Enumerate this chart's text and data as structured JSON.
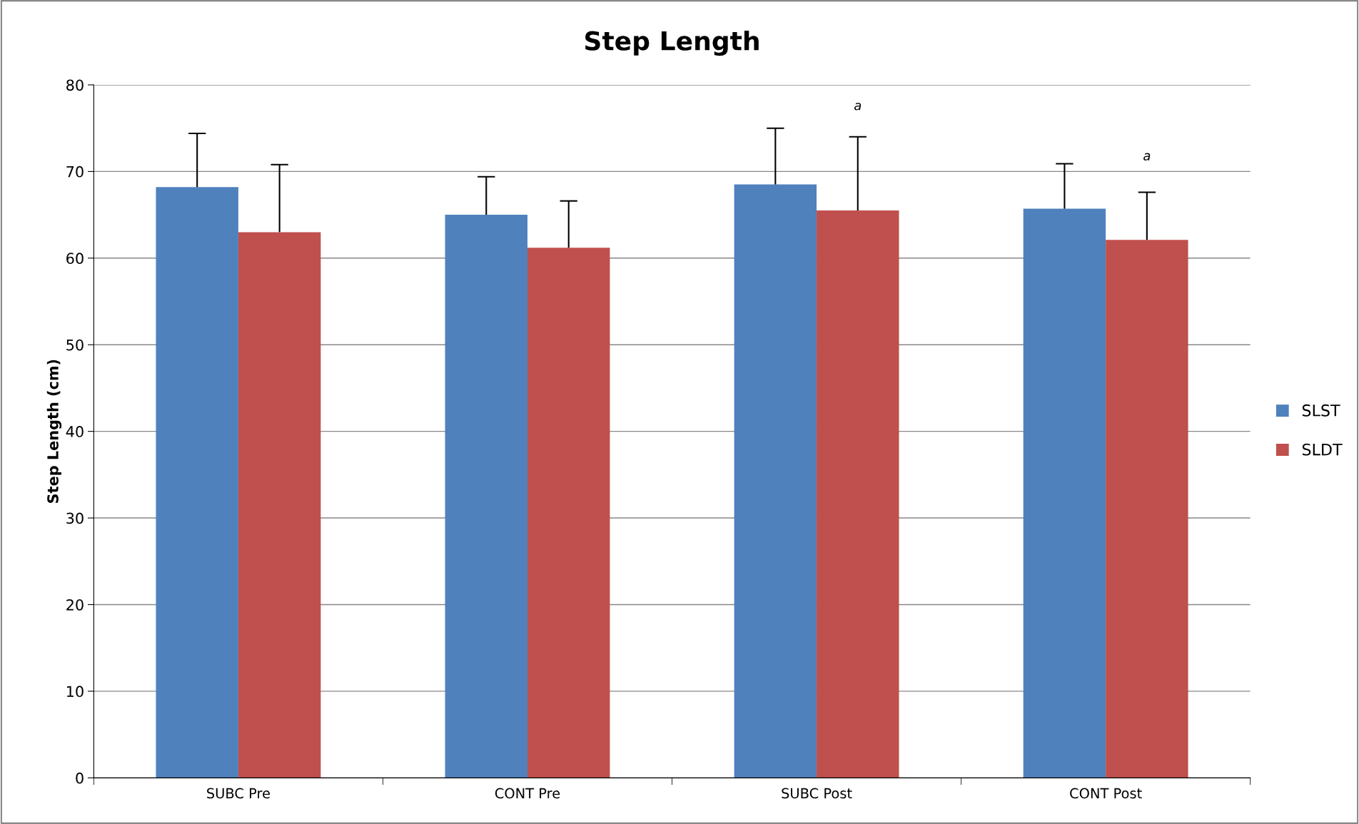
{
  "chart_data": {
    "type": "bar",
    "title": "Step Length",
    "ylabel": "Step Length (cm)",
    "categories": [
      "SUBC Pre",
      "CONT Pre",
      "SUBC Post",
      "CONT Post"
    ],
    "series": [
      {
        "name": "SLST",
        "color": "#4f81bd",
        "values": [
          68.2,
          65.0,
          68.5,
          65.7
        ],
        "errors": [
          [
            68.2,
            74.4
          ],
          [
            65.0,
            69.4
          ],
          [
            68.5,
            75.0
          ],
          [
            65.7,
            70.9
          ]
        ]
      },
      {
        "name": "SLDT",
        "color": "#c0504d",
        "values": [
          63.0,
          61.2,
          65.5,
          62.1
        ],
        "errors": [
          [
            63.0,
            70.8
          ],
          [
            61.2,
            66.6
          ],
          [
            65.5,
            74.0
          ],
          [
            62.1,
            67.6
          ]
        ]
      }
    ],
    "ylim": [
      0,
      80
    ],
    "yticks": [
      0,
      10,
      20,
      30,
      40,
      50,
      60,
      70,
      80
    ],
    "grid": "y",
    "legend": "right",
    "annotations": [
      "a",
      "a"
    ]
  }
}
